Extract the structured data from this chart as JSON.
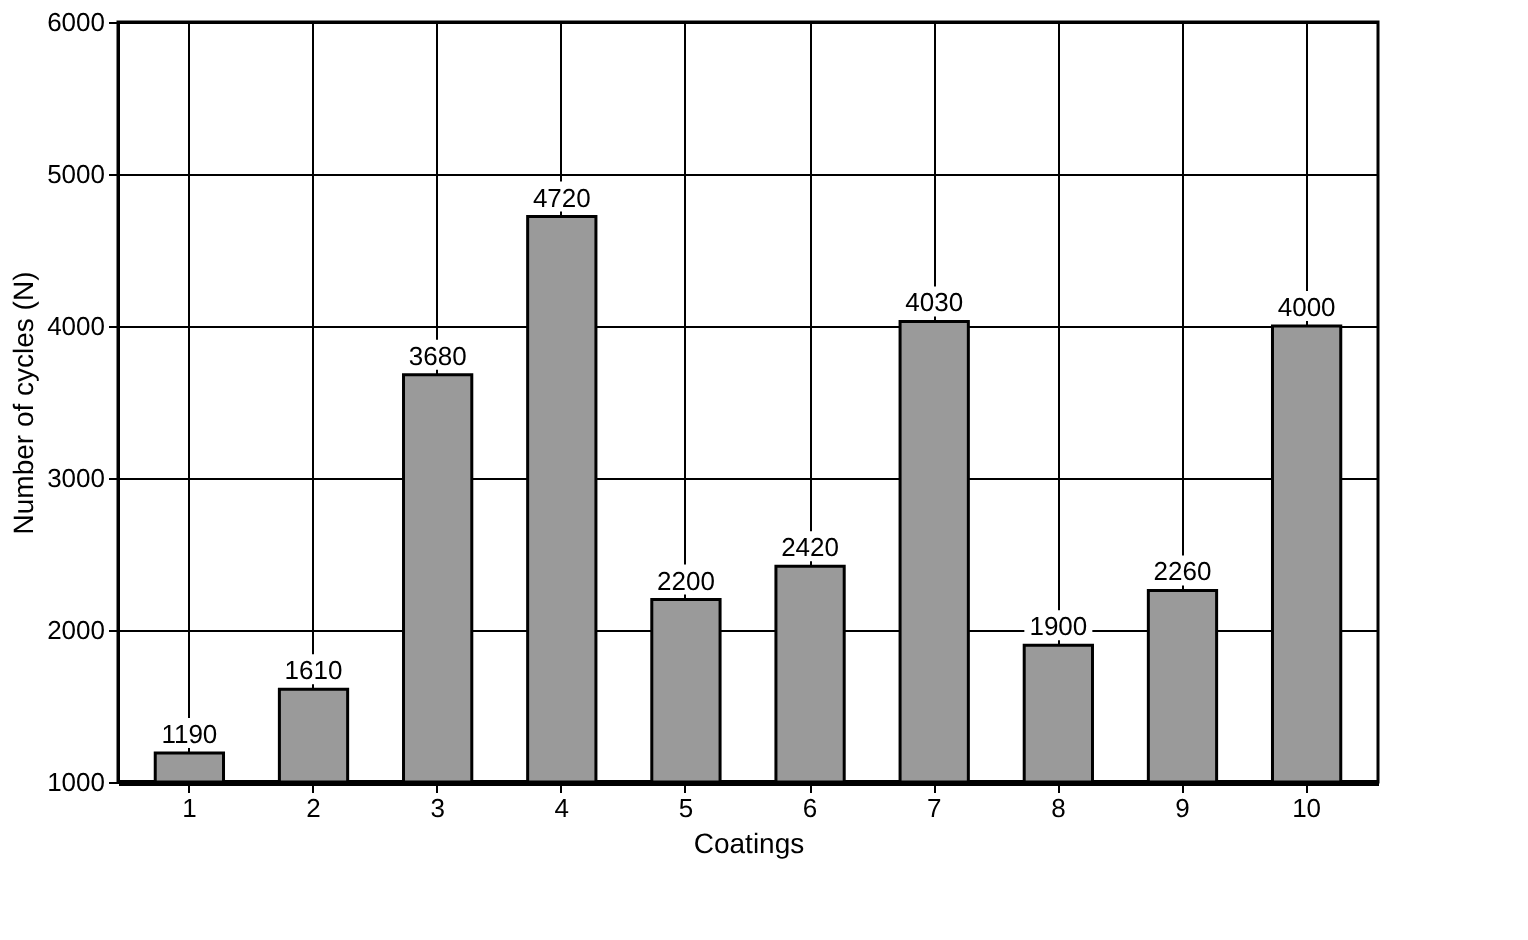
{
  "chart_data": {
    "type": "bar",
    "xlabel": "Coatings",
    "ylabel": "Number of cycles (N)",
    "categories": [
      "1",
      "2",
      "3",
      "4",
      "5",
      "6",
      "7",
      "8",
      "9",
      "10"
    ],
    "values": [
      1190,
      1610,
      3680,
      4720,
      2200,
      2420,
      4030,
      1900,
      2260,
      4000
    ],
    "color": "#9a9a9a",
    "ylim": [
      1000,
      6000
    ],
    "yticks": [
      1000,
      2000,
      3000,
      4000,
      5000,
      6000
    ],
    "grid": true,
    "data_labels": true
  }
}
